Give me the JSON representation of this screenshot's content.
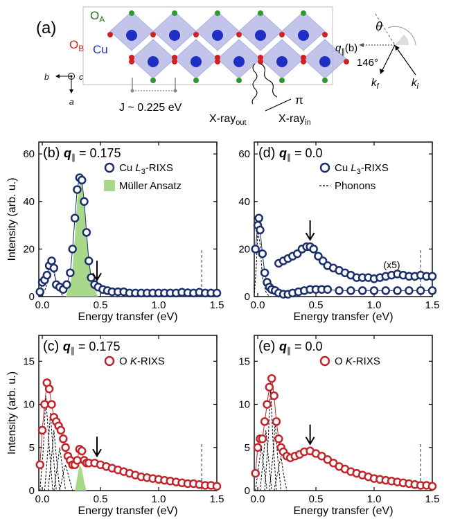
{
  "structure": {
    "panel_label": "(a)",
    "labels": {
      "oa": "O",
      "oa_sub": "A",
      "ob": "O",
      "ob_sub": "B",
      "cu": "Cu",
      "coupling": "J ~ 0.225 eV",
      "xray_out": "X-ray",
      "xray_out_sub": "out",
      "xray_in": "X-ray",
      "xray_in_sub": "in",
      "pi": "π",
      "axis_b": "b",
      "axis_c": "c",
      "axis_a": "a"
    }
  },
  "geometry": {
    "theta": "θ",
    "q_label": "q",
    "q_sub": "∥",
    "q_paren": "(b)",
    "angle": "146°",
    "kf": "k",
    "kf_sub": "f",
    "ki": "k",
    "ki_sub": "i"
  },
  "colors": {
    "cu_rixs": "#1a2f6b",
    "o_rixs": "#c0262b",
    "ansatz_fill": "#a8d88a",
    "octahedra": "#b8bbe6",
    "cu_atom": "#1f2fc4",
    "oa_atom": "#2e9a2e",
    "ob_atom": "#d42020",
    "marker_line": "#34507e"
  },
  "chart_data": [
    {
      "panel": "(b)",
      "type": "scatter",
      "title": "q",
      "title_sub": "∥",
      "title_value": " = 0.175",
      "xlabel": "Energy transfer (eV)",
      "ylabel": "Intensity (arb. u.)",
      "xlim": [
        -0.03,
        1.5
      ],
      "ylim": [
        0,
        65
      ],
      "xticks": [
        "0.0",
        "0.5",
        "1.0",
        "1.5"
      ],
      "yticks": [
        "0",
        "20",
        "40",
        "60"
      ],
      "legend": [
        {
          "label_pre": "Cu ",
          "label_it": "L",
          "label_sub": "3",
          "label_post": "-RIXS",
          "kind": "circle"
        },
        {
          "label_pre": "Müller Ansatz",
          "label_it": "",
          "label_sub": "",
          "label_post": "",
          "kind": "fill"
        }
      ],
      "arrow_x": 0.47,
      "dashed_line_x": 1.37,
      "series": [
        {
          "name": "Cu L3-RIXS",
          "x": [
            -0.02,
            0.0,
            0.02,
            0.04,
            0.06,
            0.08,
            0.1,
            0.12,
            0.15,
            0.18,
            0.21,
            0.24,
            0.26,
            0.28,
            0.3,
            0.32,
            0.34,
            0.36,
            0.38,
            0.4,
            0.42,
            0.45,
            0.48,
            0.52,
            0.56,
            0.6,
            0.65,
            0.7,
            0.75,
            0.8,
            0.85,
            0.9,
            0.95,
            1.0,
            1.05,
            1.1,
            1.15,
            1.2,
            1.25,
            1.3,
            1.35,
            1.4,
            1.45,
            1.5
          ],
          "y": [
            2,
            6,
            7,
            9,
            13,
            15,
            12,
            5,
            4,
            3,
            5,
            10,
            20,
            33,
            45,
            50,
            49,
            40,
            27,
            15,
            8,
            5,
            4,
            3,
            2.5,
            2,
            2,
            2,
            1.5,
            1.5,
            1.5,
            1.5,
            1.5,
            1.5,
            1.5,
            1.5,
            1.5,
            1.8,
            1.6,
            1.5,
            1.8,
            1.5,
            1.5,
            1.5
          ]
        }
      ],
      "fill": {
        "name": "Müller Ansatz",
        "x": [
          0.2,
          0.24,
          0.26,
          0.28,
          0.3,
          0.32,
          0.34,
          0.36,
          0.38,
          0.4,
          0.42,
          0.44,
          0.46,
          0.48
        ],
        "y": [
          0,
          5,
          12,
          25,
          40,
          48,
          47,
          38,
          25,
          14,
          8,
          4,
          2,
          0
        ]
      },
      "phonon_curves": [
        {
          "x": [
            0.0,
            0.04,
            0.07,
            0.1,
            0.14,
            0.18
          ],
          "y": [
            0,
            5,
            13,
            10,
            3,
            0
          ]
        }
      ]
    },
    {
      "panel": "(d)",
      "type": "scatter",
      "title": "q",
      "title_sub": "∥",
      "title_value": " = 0.0",
      "xlabel": "Energy transfer (eV)",
      "ylabel": "",
      "xlim": [
        -0.03,
        1.5
      ],
      "ylim": [
        0,
        65
      ],
      "xticks": [
        "0.0",
        "0.5",
        "1.0",
        "1.5"
      ],
      "yticks": [
        "0",
        "20",
        "40",
        "60"
      ],
      "legend": [
        {
          "label_pre": "Cu ",
          "label_it": "L",
          "label_sub": "3",
          "label_post": "-RIXS",
          "kind": "circle"
        },
        {
          "label_pre": "Phonons",
          "label_it": "",
          "label_sub": "",
          "label_post": "",
          "kind": "dashed"
        }
      ],
      "annotation": "(x5)",
      "arrow_x": 0.45,
      "dashed_line_x": 1.4,
      "series": [
        {
          "name": "Cu L3-RIXS",
          "x": [
            -0.02,
            0.0,
            0.01,
            0.02,
            0.04,
            0.06,
            0.08,
            0.1,
            0.12,
            0.15,
            0.18,
            0.22,
            0.26,
            0.3,
            0.35,
            0.4,
            0.45,
            0.5,
            0.55,
            0.6,
            0.7,
            0.8,
            0.9,
            1.0,
            1.1,
            1.2,
            1.3,
            1.4,
            1.5
          ],
          "y": [
            20,
            30,
            33,
            28,
            18,
            10,
            6,
            4,
            3,
            2.5,
            1.5,
            1,
            1,
            1.5,
            2,
            2.5,
            3,
            3,
            3,
            3,
            2.5,
            2.5,
            2.5,
            2.5,
            2.5,
            2.5,
            2.5,
            2.5,
            2.5
          ]
        },
        {
          "name": "x5",
          "x": [
            0.18,
            0.22,
            0.26,
            0.3,
            0.34,
            0.38,
            0.42,
            0.45,
            0.48,
            0.52,
            0.56,
            0.6,
            0.65,
            0.7,
            0.75,
            0.8,
            0.85,
            0.9,
            0.95,
            1.0,
            1.05,
            1.1,
            1.15,
            1.2,
            1.25,
            1.3,
            1.35,
            1.4,
            1.45,
            1.5
          ],
          "y": [
            14,
            15,
            16,
            17,
            18,
            20,
            21,
            21,
            20,
            17,
            15,
            13,
            12,
            11,
            10,
            9,
            8,
            8,
            8,
            7.5,
            8,
            8.5,
            9,
            9.5,
            9,
            8.5,
            8.5,
            9,
            8.5,
            8.5
          ]
        }
      ],
      "phonon_curves": [
        {
          "x": [
            -0.03,
            -0.01,
            0.0,
            0.02,
            0.04,
            0.07,
            0.1
          ],
          "y": [
            0,
            15,
            28,
            22,
            8,
            2,
            0
          ]
        }
      ]
    },
    {
      "panel": "(c)",
      "type": "scatter",
      "title": "q",
      "title_sub": "∥",
      "title_value": " = 0.175",
      "xlabel": "Energy transfer (eV)",
      "ylabel": "Intensity (arb. u.)",
      "xlim": [
        -0.03,
        1.5
      ],
      "ylim": [
        0,
        18
      ],
      "xticks": [
        "0.0",
        "0.5",
        "1.0",
        "1.5"
      ],
      "yticks": [
        "0",
        "5",
        "10",
        "15"
      ],
      "legend": [
        {
          "label_pre": "O ",
          "label_it": "K",
          "label_sub": "",
          "label_post": "-RIXS",
          "kind": "circle-red"
        }
      ],
      "arrow_x": 0.47,
      "dashed_line_x": 1.37,
      "series": [
        {
          "name": "O K-RIXS",
          "x": [
            -0.02,
            0.0,
            0.02,
            0.04,
            0.06,
            0.08,
            0.1,
            0.12,
            0.14,
            0.16,
            0.18,
            0.2,
            0.22,
            0.24,
            0.26,
            0.28,
            0.3,
            0.32,
            0.34,
            0.36,
            0.38,
            0.4,
            0.45,
            0.5,
            0.55,
            0.6,
            0.65,
            0.7,
            0.75,
            0.8,
            0.85,
            0.9,
            0.95,
            1.0,
            1.05,
            1.1,
            1.15,
            1.2,
            1.25,
            1.3,
            1.35,
            1.4,
            1.45,
            1.5
          ],
          "y": [
            3,
            7,
            10,
            12.5,
            11.8,
            10,
            8.5,
            8,
            7.5,
            7,
            6,
            5,
            4,
            3.5,
            3,
            3,
            3.5,
            4.8,
            4.6,
            3.5,
            3.2,
            3.2,
            3.2,
            3,
            2.8,
            2.6,
            2.4,
            2.2,
            2,
            1.8,
            1.6,
            1.5,
            1.4,
            1.3,
            1.2,
            1.1,
            1,
            0.9,
            0.8,
            0.8,
            0.7,
            0.6,
            0.6,
            0.5
          ]
        }
      ],
      "fill": {
        "name": "Müller Ansatz",
        "x": [
          0.28,
          0.3,
          0.32,
          0.34,
          0.36,
          0.38
        ],
        "y": [
          0,
          1.5,
          3,
          2.5,
          1,
          0
        ]
      },
      "phonon_curves": [
        {
          "x": [
            -0.02,
            0.01,
            0.03,
            0.06,
            0.09
          ],
          "y": [
            0,
            5,
            11,
            5,
            0
          ]
        },
        {
          "x": [
            0.02,
            0.05,
            0.07,
            0.09,
            0.12
          ],
          "y": [
            0,
            5,
            9,
            5,
            0
          ]
        },
        {
          "x": [
            0.05,
            0.08,
            0.1,
            0.12,
            0.15
          ],
          "y": [
            0,
            4,
            7,
            4,
            0
          ]
        },
        {
          "x": [
            0.1,
            0.13,
            0.15,
            0.17,
            0.2
          ],
          "y": [
            0,
            3,
            5,
            3,
            0
          ]
        },
        {
          "x": [
            0.15,
            0.18,
            0.2,
            0.22,
            0.26
          ],
          "y": [
            0,
            2,
            3,
            2,
            0
          ]
        }
      ]
    },
    {
      "panel": "(e)",
      "type": "scatter",
      "title": "q",
      "title_sub": "∥",
      "title_value": " = 0.0",
      "xlabel": "Energy transfer (eV)",
      "ylabel": "",
      "xlim": [
        -0.03,
        1.5
      ],
      "ylim": [
        0,
        18
      ],
      "xticks": [
        "0.0",
        "0.5",
        "1.0",
        "1.5"
      ],
      "yticks": [
        "0",
        "5",
        "10",
        "15"
      ],
      "legend": [
        {
          "label_pre": "O ",
          "label_it": "K",
          "label_sub": "",
          "label_post": "-RIXS",
          "kind": "circle-red"
        }
      ],
      "arrow_x": 0.45,
      "dashed_line_x": 1.4,
      "series": [
        {
          "name": "O K-RIXS",
          "x": [
            -0.02,
            0.0,
            0.02,
            0.04,
            0.06,
            0.08,
            0.1,
            0.12,
            0.14,
            0.16,
            0.18,
            0.2,
            0.22,
            0.25,
            0.28,
            0.32,
            0.36,
            0.4,
            0.45,
            0.5,
            0.55,
            0.6,
            0.65,
            0.7,
            0.75,
            0.8,
            0.85,
            0.9,
            0.95,
            1.0,
            1.05,
            1.1,
            1.15,
            1.2,
            1.25,
            1.3,
            1.35,
            1.4,
            1.45,
            1.5
          ],
          "y": [
            2,
            5,
            6,
            6,
            8,
            10,
            12,
            13,
            11,
            8,
            6,
            5,
            4.5,
            4,
            3.8,
            4,
            4.2,
            4.5,
            4.6,
            4.3,
            4,
            3.6,
            3.2,
            2.8,
            2.5,
            2.2,
            2,
            1.8,
            1.6,
            1.4,
            1.3,
            1.2,
            1.1,
            1,
            0.9,
            0.8,
            0.7,
            0.6,
            0.6,
            0.5
          ]
        }
      ],
      "phonon_curves": [
        {
          "x": [
            -0.02,
            0.01,
            0.03,
            0.05,
            0.08
          ],
          "y": [
            0,
            3,
            5,
            3,
            0
          ]
        },
        {
          "x": [
            0.02,
            0.05,
            0.07,
            0.09,
            0.12
          ],
          "y": [
            0,
            4,
            7,
            4,
            0
          ]
        },
        {
          "x": [
            0.06,
            0.09,
            0.11,
            0.13,
            0.16
          ],
          "y": [
            0,
            6,
            12,
            6,
            0
          ]
        },
        {
          "x": [
            0.1,
            0.13,
            0.15,
            0.17,
            0.2
          ],
          "y": [
            0,
            4,
            8,
            4,
            0
          ]
        },
        {
          "x": [
            0.14,
            0.17,
            0.2,
            0.22,
            0.25
          ],
          "y": [
            0,
            2,
            4,
            2,
            0
          ]
        }
      ]
    }
  ]
}
